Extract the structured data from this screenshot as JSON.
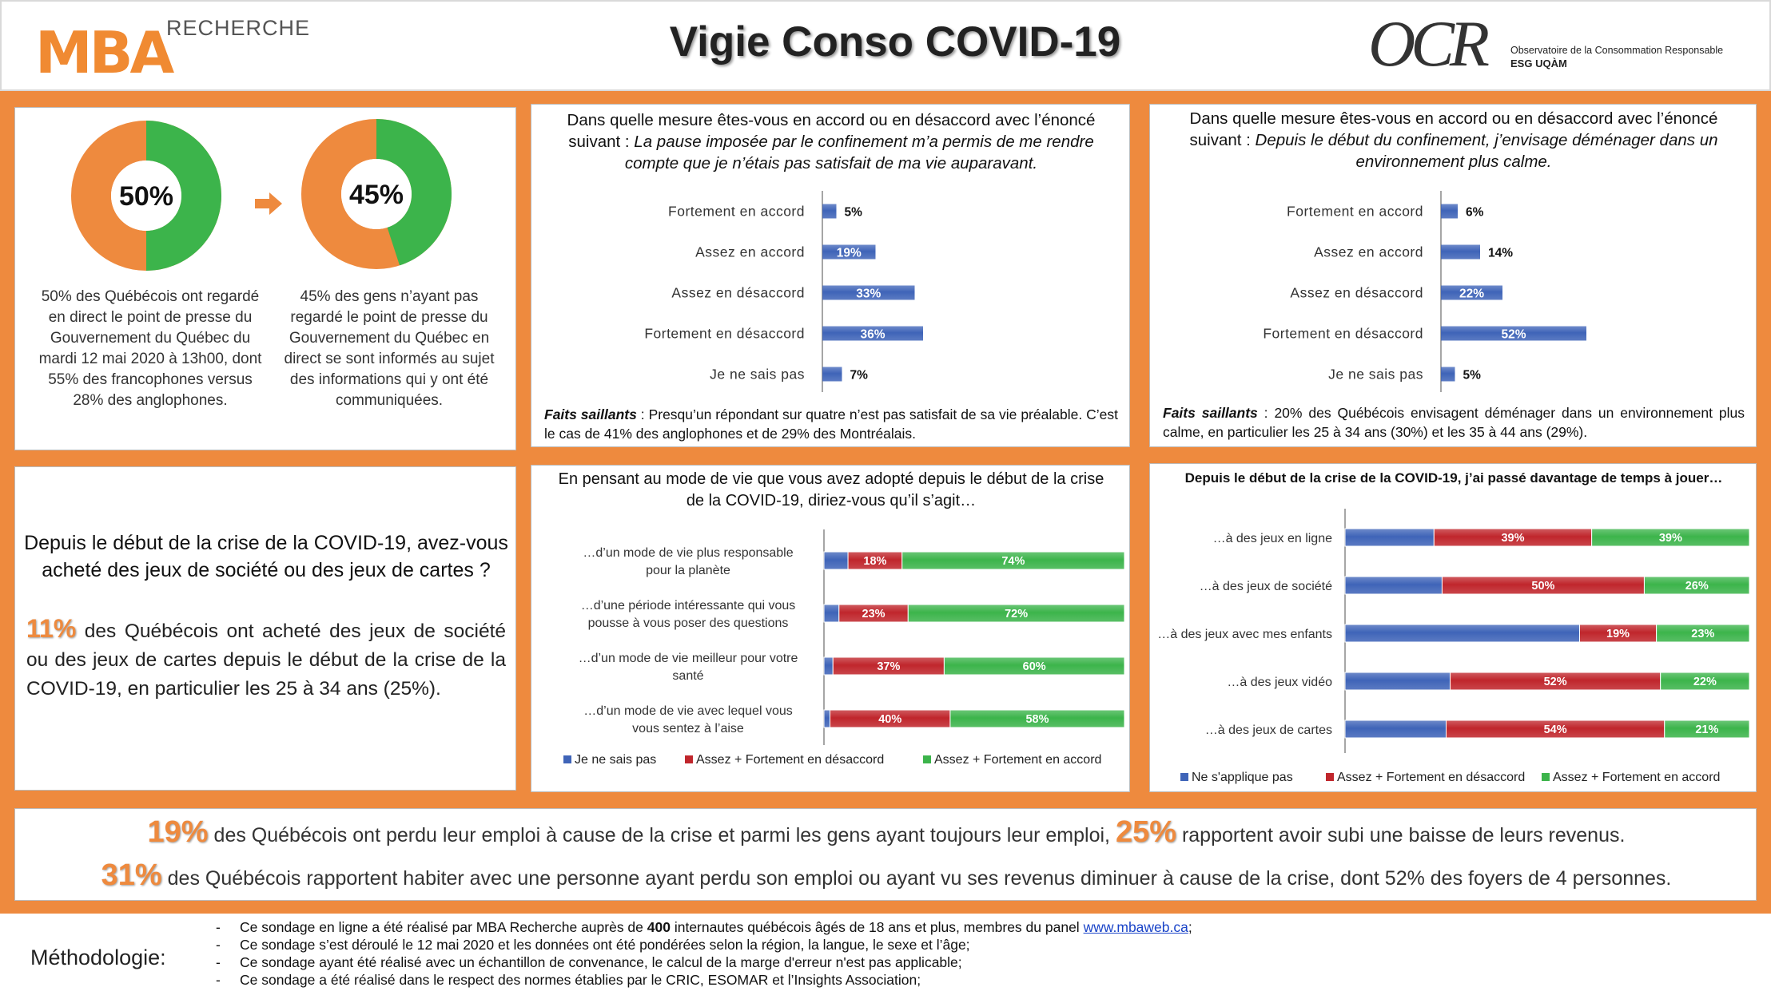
{
  "header": {
    "logo_left_main": "MBA",
    "logo_left_sub": "RECHERCHE",
    "title": "Vigie Conso COVID-19",
    "logo_right_main": "OCR",
    "logo_right_line1": "Observatoire de la Consommation Responsable",
    "logo_right_line2": "ESG UQÀM"
  },
  "colors": {
    "orange": "#ee8a3e",
    "green": "#3cb44b",
    "blue": "#3f64b8",
    "red": "#c0262c"
  },
  "donuts": [
    {
      "label": "50%",
      "value": 50,
      "text": "50% des Québécois ont regardé en direct le point de presse du Gouvernement du Québec du mardi 12 mai 2020 à 13h00, dont 55% des francophones versus 28% des anglophones."
    },
    {
      "label": "45%",
      "value": 45,
      "text": "45% des gens n’ayant pas regardé le point de presse du Gouvernement du Québec en direct se sont informés au sujet des informations qui y ont été communiquées."
    }
  ],
  "games_question": {
    "question": "Depuis le début de la crise de la COVID-19, avez-vous acheté des jeux de société ou des jeux de cartes ?",
    "stat": "11%",
    "text": " des Québécois ont acheté des jeux de société ou des jeux de cartes depuis le début de la crise de la COVID-19, en particulier les 25 à 34 ans (25%)."
  },
  "chart_data": [
    {
      "type": "bar",
      "title_prefix": "Dans quelle mesure êtes-vous en accord ou en désaccord avec l’énoncé suivant : ",
      "title_italic": "La pause imposée par le confinement m’a permis de me rendre compte que je n’étais pas satisfait de ma vie auparavant.",
      "categories": [
        "Fortement en accord",
        "Assez en accord",
        "Assez en désaccord",
        "Fortement en désaccord",
        "Je ne sais pas"
      ],
      "values": [
        5,
        19,
        33,
        36,
        7
      ],
      "labels": [
        "5%",
        "19%",
        "33%",
        "36%",
        "7%"
      ],
      "note_label": "Faits saillants",
      "note": " : Presqu’un répondant sur quatre n’est pas satisfait de sa vie préalable. C’est le cas de 41% des anglophones et de 29% des Montréalais."
    },
    {
      "type": "bar",
      "title_prefix": "Dans quelle mesure êtes-vous en accord ou en désaccord avec l’énoncé suivant : ",
      "title_italic": "Depuis le début du confinement, j’envisage déménager dans un environnement plus calme.",
      "categories": [
        "Fortement en accord",
        "Assez en accord",
        "Assez en désaccord",
        "Fortement en désaccord",
        "Je ne sais pas"
      ],
      "values": [
        6,
        14,
        22,
        52,
        5
      ],
      "labels": [
        "6%",
        "14%",
        "22%",
        "52%",
        "5%"
      ],
      "note_label": "Faits saillants",
      "note": " : 20% des Québécois envisagent déménager dans un environnement plus calme, en particulier les 25 à 34 ans (30%) et les 35 à 44 ans (29%)."
    },
    {
      "type": "bar",
      "stacked": true,
      "title": "En pensant au mode de vie que vous avez adopté depuis le début de la crise de la COVID-19, diriez-vous qu’il s’agit…",
      "categories": [
        "…d’un mode de vie plus responsable pour la planète",
        "…d’une période intéressante qui vous pousse à vous poser des questions",
        "…d’un mode de vie meilleur pour votre santé",
        "…d’un mode de vie avec lequel vous vous sentez à l’aise"
      ],
      "series": [
        {
          "name": "Je ne sais pas",
          "values": [
            8,
            5,
            3,
            2
          ]
        },
        {
          "name": "Assez + Fortement en désaccord",
          "values": [
            18,
            23,
            37,
            40
          ],
          "labels": [
            "18%",
            "23%",
            "37%",
            "40%"
          ]
        },
        {
          "name": "Assez + Fortement en accord",
          "values": [
            74,
            72,
            60,
            58
          ],
          "labels": [
            "74%",
            "72%",
            "60%",
            "58%"
          ]
        }
      ]
    },
    {
      "type": "bar",
      "stacked": true,
      "title": "Depuis le début de la crise de la COVID-19, j’ai passé davantage de temps à jouer…",
      "categories": [
        "…à des jeux en ligne",
        "…à des jeux de société",
        "…à des jeux avec mes enfants",
        "…à des jeux vidéo",
        "…à des jeux de cartes"
      ],
      "series": [
        {
          "name": "Ne s'applique pas",
          "values": [
            22,
            24,
            58,
            26,
            25
          ]
        },
        {
          "name": "Assez + Fortement en désaccord",
          "values": [
            39,
            50,
            19,
            52,
            54
          ],
          "labels": [
            "39%",
            "50%",
            "19%",
            "52%",
            "54%"
          ]
        },
        {
          "name": "Assez + Fortement en accord",
          "values": [
            39,
            26,
            23,
            22,
            21
          ],
          "labels": [
            "39%",
            "26%",
            "23%",
            "22%",
            "21%"
          ]
        }
      ]
    }
  ],
  "bottom": {
    "s1": "19%",
    "t1": " des Québécois ont perdu leur emploi à cause de la crise et parmi les gens ayant toujours leur emploi, ",
    "s2": "25%",
    "t2": " rapportent avoir subi une baisse de leurs revenus.",
    "s3": "31%",
    "t3": " des Québécois rapportent habiter avec une personne ayant perdu son emploi ou ayant vu ses revenus diminuer à cause de la crise, dont 52% des foyers de 4 personnes."
  },
  "methodology": {
    "label": "Méthodologie:",
    "item1_a": "Ce sondage en ligne a été réalisé par MBA Recherche auprès de ",
    "item1_b": "400",
    "item1_c": " internautes québécois âgés de 18 ans et plus, membres du panel ",
    "item1_link": "www.mbaweb.ca",
    "item1_d": ";",
    "item2": "Ce sondage s’est déroulé le 12 mai 2020 et les données ont été pondérées selon la région, la langue, le sexe et l’âge;",
    "item3": "Ce sondage ayant été réalisé avec un échantillon de convenance, le calcul de la marge d'erreur n'est pas applicable;",
    "item4": "Ce sondage a été réalisé dans le respect des normes établies par le CRIC, ESOMAR et l’Insights Association;"
  }
}
